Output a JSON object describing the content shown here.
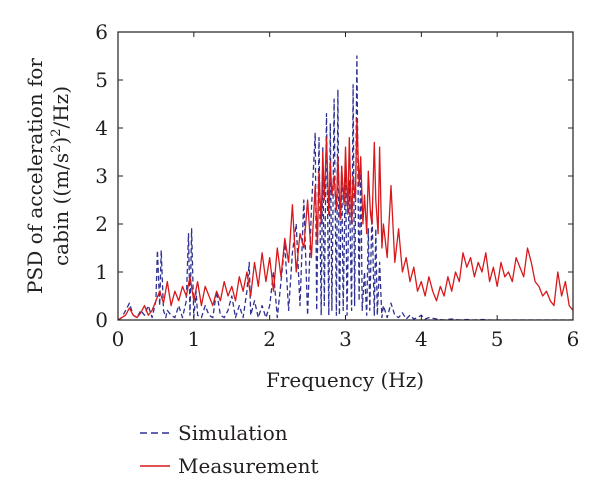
{
  "chart_data": {
    "type": "line",
    "xlabel": "Frequency (Hz)",
    "ylabel_line1": "PSD of acceleration for",
    "ylabel_line2": "cabin ((m/s",
    "ylabel_sup": "2",
    "ylabel_line2_end": ")",
    "ylabel_sup2": "2",
    "ylabel_line2_tail": "/Hz)",
    "xlim": [
      0,
      6
    ],
    "ylim": [
      0,
      6
    ],
    "xticks": [
      "0",
      "1",
      "2",
      "3",
      "4",
      "5",
      "6"
    ],
    "yticks": [
      "0",
      "1",
      "2",
      "3",
      "4",
      "5",
      "6"
    ],
    "grid": false,
    "legend_position": "below",
    "series": [
      {
        "name": "Simulation",
        "color": "#2e3192",
        "style": "dashed",
        "x": [
          0.0,
          0.05,
          0.1,
          0.15,
          0.2,
          0.25,
          0.3,
          0.35,
          0.4,
          0.45,
          0.5,
          0.52,
          0.55,
          0.57,
          0.6,
          0.63,
          0.65,
          0.7,
          0.75,
          0.8,
          0.85,
          0.9,
          0.93,
          0.95,
          0.97,
          1.0,
          1.03,
          1.05,
          1.1,
          1.15,
          1.2,
          1.25,
          1.3,
          1.35,
          1.4,
          1.45,
          1.5,
          1.55,
          1.6,
          1.65,
          1.7,
          1.73,
          1.75,
          1.8,
          1.85,
          1.9,
          1.95,
          2.0,
          2.05,
          2.1,
          2.15,
          2.2,
          2.25,
          2.3,
          2.35,
          2.4,
          2.45,
          2.5,
          2.55,
          2.6,
          2.62,
          2.65,
          2.68,
          2.7,
          2.72,
          2.75,
          2.78,
          2.8,
          2.82,
          2.85,
          2.88,
          2.9,
          2.92,
          2.95,
          2.97,
          3.0,
          3.02,
          3.05,
          3.08,
          3.1,
          3.12,
          3.15,
          3.18,
          3.2,
          3.22,
          3.25,
          3.28,
          3.3,
          3.32,
          3.35,
          3.38,
          3.4,
          3.42,
          3.45,
          3.48,
          3.5,
          3.55,
          3.6,
          3.65,
          3.7,
          3.75,
          3.8,
          3.85,
          3.9,
          3.95,
          4.0,
          4.05,
          4.1,
          4.2,
          4.3,
          4.4,
          4.5,
          4.6,
          4.7,
          4.8,
          4.9,
          5.0,
          5.2,
          5.4,
          5.6,
          5.8,
          6.0
        ],
        "y": [
          0.0,
          0.05,
          0.2,
          0.35,
          0.1,
          0.05,
          0.2,
          0.1,
          0.3,
          0.05,
          0.4,
          1.45,
          0.3,
          1.45,
          0.2,
          0.05,
          0.2,
          0.1,
          0.05,
          0.3,
          0.05,
          0.4,
          1.8,
          0.1,
          1.9,
          0.05,
          0.6,
          0.1,
          0.05,
          0.3,
          0.1,
          0.05,
          0.6,
          0.1,
          0.05,
          0.2,
          0.5,
          0.05,
          0.3,
          0.05,
          0.6,
          1.2,
          0.1,
          0.4,
          0.05,
          0.3,
          0.05,
          0.3,
          1.0,
          0.05,
          0.8,
          1.6,
          0.2,
          1.4,
          2.0,
          0.3,
          2.5,
          0.1,
          2.3,
          3.9,
          0.2,
          3.8,
          0.1,
          3.6,
          0.3,
          4.3,
          0.1,
          4.1,
          0.2,
          4.6,
          0.1,
          4.8,
          0.1,
          3.2,
          0.2,
          3.3,
          0.1,
          2.9,
          0.2,
          4.9,
          0.3,
          5.5,
          0.4,
          3.4,
          0.2,
          1.0,
          0.1,
          1.9,
          0.2,
          2.3,
          0.1,
          1.9,
          0.1,
          1.2,
          0.05,
          0.3,
          0.05,
          0.35,
          0.1,
          0.05,
          0.15,
          0.02,
          0.1,
          0.02,
          0.05,
          0.1,
          0.02,
          0.05,
          0.02,
          0.0,
          0.02,
          0.0,
          0.01,
          0.0,
          0.01,
          0.0,
          0.0,
          0.0,
          0.0,
          0.0,
          0.0,
          0.0
        ]
      },
      {
        "name": "Measurement",
        "color": "#d7191c",
        "style": "solid",
        "x": [
          0.0,
          0.05,
          0.1,
          0.15,
          0.2,
          0.25,
          0.3,
          0.35,
          0.4,
          0.45,
          0.5,
          0.55,
          0.6,
          0.65,
          0.7,
          0.75,
          0.8,
          0.85,
          0.9,
          0.95,
          1.0,
          1.05,
          1.1,
          1.15,
          1.2,
          1.25,
          1.3,
          1.35,
          1.4,
          1.45,
          1.5,
          1.55,
          1.6,
          1.65,
          1.7,
          1.75,
          1.8,
          1.85,
          1.9,
          1.95,
          2.0,
          2.05,
          2.1,
          2.15,
          2.2,
          2.25,
          2.3,
          2.35,
          2.4,
          2.45,
          2.5,
          2.55,
          2.6,
          2.63,
          2.65,
          2.68,
          2.7,
          2.72,
          2.75,
          2.78,
          2.8,
          2.82,
          2.85,
          2.88,
          2.9,
          2.93,
          2.95,
          2.98,
          3.0,
          3.03,
          3.05,
          3.08,
          3.1,
          3.13,
          3.15,
          3.18,
          3.2,
          3.23,
          3.25,
          3.28,
          3.3,
          3.33,
          3.35,
          3.38,
          3.4,
          3.43,
          3.45,
          3.48,
          3.5,
          3.55,
          3.6,
          3.65,
          3.7,
          3.75,
          3.8,
          3.85,
          3.9,
          3.95,
          4.0,
          4.05,
          4.1,
          4.15,
          4.2,
          4.25,
          4.3,
          4.35,
          4.4,
          4.45,
          4.5,
          4.55,
          4.6,
          4.65,
          4.7,
          4.75,
          4.8,
          4.85,
          4.9,
          4.95,
          5.0,
          5.05,
          5.1,
          5.15,
          5.2,
          5.25,
          5.3,
          5.35,
          5.4,
          5.45,
          5.5,
          5.55,
          5.6,
          5.65,
          5.7,
          5.75,
          5.8,
          5.85,
          5.9,
          5.95,
          6.0
        ],
        "y": [
          0.0,
          0.05,
          0.1,
          0.25,
          0.1,
          0.05,
          0.15,
          0.3,
          0.1,
          0.2,
          0.4,
          0.6,
          0.35,
          0.8,
          0.3,
          0.6,
          0.4,
          0.7,
          0.5,
          0.9,
          0.4,
          0.8,
          0.3,
          0.7,
          0.5,
          0.3,
          0.6,
          0.4,
          0.8,
          0.5,
          0.7,
          0.4,
          0.9,
          0.6,
          1.0,
          0.5,
          1.2,
          0.7,
          1.4,
          0.8,
          1.3,
          0.6,
          1.5,
          0.9,
          1.7,
          1.2,
          2.4,
          1.0,
          1.8,
          1.5,
          2.5,
          1.3,
          2.8,
          1.6,
          3.1,
          2.0,
          3.5,
          2.5,
          3.8,
          2.2,
          3.3,
          2.6,
          3.0,
          2.3,
          3.4,
          2.1,
          3.2,
          2.4,
          3.6,
          2.2,
          3.8,
          2.0,
          3.0,
          2.5,
          4.2,
          2.8,
          3.4,
          2.0,
          2.6,
          1.8,
          3.1,
          2.2,
          2.0,
          3.7,
          2.5,
          1.8,
          3.6,
          1.5,
          2.0,
          1.3,
          2.8,
          1.2,
          1.9,
          1.0,
          1.3,
          0.8,
          1.1,
          0.6,
          0.8,
          0.5,
          0.9,
          0.6,
          0.4,
          0.7,
          0.5,
          0.9,
          0.6,
          1.0,
          0.8,
          1.4,
          1.1,
          1.3,
          0.9,
          1.2,
          1.0,
          1.4,
          0.8,
          1.1,
          0.7,
          1.2,
          0.9,
          1.0,
          0.8,
          1.3,
          1.1,
          0.9,
          1.5,
          1.2,
          0.8,
          0.7,
          0.5,
          0.6,
          0.4,
          0.3,
          1.0,
          0.5,
          0.8,
          0.3,
          0.2
        ]
      }
    ]
  }
}
